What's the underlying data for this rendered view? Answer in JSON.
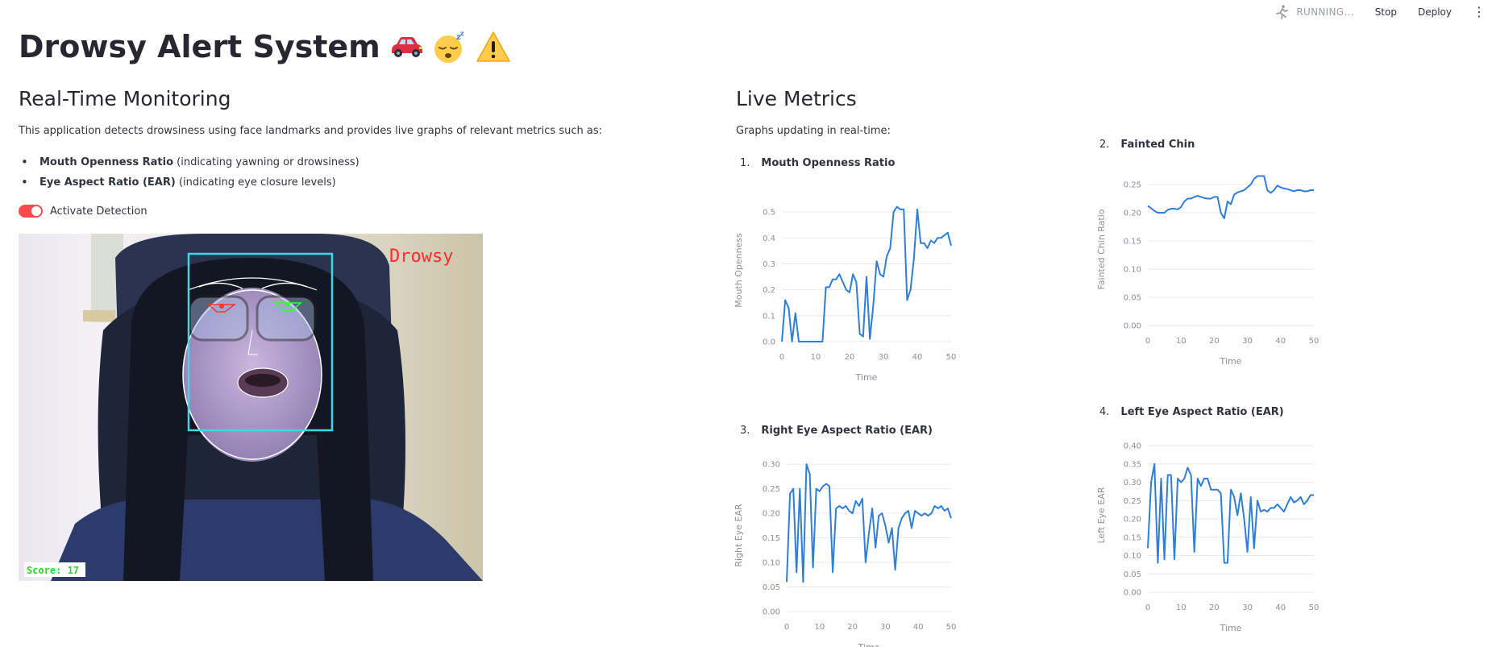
{
  "toolbar": {
    "status": "RUNNING...",
    "stop_label": "Stop",
    "deploy_label": "Deploy",
    "menu_icon": "kebab-menu-icon"
  },
  "page": {
    "title": "Drowsy Alert System",
    "title_emojis": [
      "car-icon",
      "sleepy-face-icon",
      "warning-icon"
    ]
  },
  "left": {
    "heading": "Real-Time Monitoring",
    "description": "This application detects drowsiness using face landmarks and provides live graphs of relevant metrics such as:",
    "bullets": [
      {
        "bold": "Mouth Openness Ratio",
        "rest": " (indicating yawning or drowsiness)"
      },
      {
        "bold": "Eye Aspect Ratio (EAR)",
        "rest": " (indicating eye closure levels)"
      }
    ],
    "toggle_label": "Activate Detection",
    "toggle_on": true,
    "video": {
      "status_text": "Drowsy",
      "score_text": "Score: 17"
    }
  },
  "right": {
    "heading": "Live Metrics",
    "subtitle": "Graphs updating in real-time:"
  },
  "chart_data": [
    {
      "id": "mouth",
      "type": "line",
      "number": "1.",
      "title": "Mouth Openness Ratio",
      "xlabel": "Time",
      "ylabel": "Mouth Openness",
      "xlim": [
        0,
        50
      ],
      "ylim": [
        0,
        0.55
      ],
      "xticks": [
        0,
        10,
        20,
        30,
        40,
        50
      ],
      "yticks": [
        0.0,
        0.1,
        0.2,
        0.3,
        0.4,
        0.5
      ],
      "ytick_labels": [
        "0.0",
        "0.1",
        "0.2",
        "0.3",
        "0.4",
        "0.5"
      ],
      "xtick_labels": [
        "0",
        "10",
        "20",
        "30",
        "40",
        "50"
      ],
      "color": "#2f7ed8",
      "values": [
        0.0,
        0.16,
        0.13,
        0.0,
        0.11,
        0.0,
        0.0,
        0.0,
        0.0,
        0.0,
        0.0,
        0.0,
        0.0,
        0.21,
        0.21,
        0.24,
        0.24,
        0.26,
        0.23,
        0.2,
        0.19,
        0.26,
        0.23,
        0.03,
        0.02,
        0.25,
        0.01,
        0.14,
        0.31,
        0.26,
        0.25,
        0.33,
        0.36,
        0.5,
        0.52,
        0.51,
        0.51,
        0.16,
        0.2,
        0.32,
        0.51,
        0.38,
        0.38,
        0.36,
        0.39,
        0.38,
        0.4,
        0.4,
        0.41,
        0.42,
        0.37
      ]
    },
    {
      "id": "chin",
      "type": "line",
      "number": "2.",
      "title": "Fainted Chin",
      "xlabel": "Time",
      "ylabel": "Fainted Chin Ratio",
      "xlim": [
        0,
        50
      ],
      "ylim": [
        0,
        0.27
      ],
      "xticks": [
        0,
        10,
        20,
        30,
        40,
        50
      ],
      "yticks": [
        0.0,
        0.05,
        0.1,
        0.15,
        0.2,
        0.25
      ],
      "ytick_labels": [
        "0.00",
        "0.05",
        "0.10",
        "0.15",
        "0.20",
        "0.25"
      ],
      "xtick_labels": [
        "0",
        "10",
        "20",
        "30",
        "40",
        "50"
      ],
      "color": "#2f7ed8",
      "values": [
        0.212,
        0.208,
        0.203,
        0.2,
        0.2,
        0.2,
        0.205,
        0.207,
        0.207,
        0.206,
        0.21,
        0.22,
        0.225,
        0.225,
        0.228,
        0.23,
        0.228,
        0.226,
        0.225,
        0.225,
        0.228,
        0.228,
        0.2,
        0.19,
        0.22,
        0.215,
        0.232,
        0.236,
        0.238,
        0.24,
        0.245,
        0.25,
        0.26,
        0.265,
        0.265,
        0.265,
        0.24,
        0.235,
        0.24,
        0.248,
        0.245,
        0.243,
        0.242,
        0.24,
        0.238,
        0.24,
        0.24,
        0.238,
        0.238,
        0.24,
        0.24
      ]
    },
    {
      "id": "reye",
      "type": "line",
      "number": "3.",
      "title": "Right Eye Aspect Ratio (EAR)",
      "xlabel": "Time",
      "ylabel": "Right Eye EAR",
      "xlim": [
        0,
        50
      ],
      "ylim": [
        0,
        0.31
      ],
      "xticks": [
        0,
        10,
        20,
        30,
        40,
        50
      ],
      "yticks": [
        0.0,
        0.05,
        0.1,
        0.15,
        0.2,
        0.25,
        0.3
      ],
      "ytick_labels": [
        "0.00",
        "0.05",
        "0.10",
        "0.15",
        "0.20",
        "0.25",
        "0.30"
      ],
      "xtick_labels": [
        "0",
        "10",
        "20",
        "30",
        "40",
        "50"
      ],
      "color": "#2f7ed8",
      "values": [
        0.06,
        0.24,
        0.25,
        0.08,
        0.25,
        0.06,
        0.3,
        0.28,
        0.09,
        0.25,
        0.245,
        0.255,
        0.26,
        0.255,
        0.08,
        0.21,
        0.215,
        0.21,
        0.215,
        0.205,
        0.2,
        0.225,
        0.215,
        0.23,
        0.1,
        0.16,
        0.21,
        0.13,
        0.195,
        0.2,
        0.175,
        0.14,
        0.17,
        0.085,
        0.17,
        0.19,
        0.2,
        0.205,
        0.17,
        0.205,
        0.2,
        0.195,
        0.2,
        0.195,
        0.2,
        0.215,
        0.21,
        0.215,
        0.205,
        0.21,
        0.19
      ]
    },
    {
      "id": "leye",
      "type": "line",
      "number": "4.",
      "title": "Left Eye Aspect Ratio (EAR)",
      "xlabel": "Time",
      "ylabel": "Left Eye EAR",
      "xlim": [
        0,
        50
      ],
      "ylim": [
        0,
        0.42
      ],
      "xticks": [
        0,
        10,
        20,
        30,
        40,
        50
      ],
      "yticks": [
        0.0,
        0.05,
        0.1,
        0.15,
        0.2,
        0.25,
        0.3,
        0.35,
        0.4
      ],
      "ytick_labels": [
        "0.00",
        "0.05",
        "0.10",
        "0.15",
        "0.20",
        "0.25",
        "0.30",
        "0.35",
        "0.40"
      ],
      "xtick_labels": [
        "0",
        "10",
        "20",
        "30",
        "40",
        "50"
      ],
      "color": "#2f7ed8",
      "values": [
        0.12,
        0.3,
        0.35,
        0.08,
        0.31,
        0.09,
        0.32,
        0.32,
        0.09,
        0.31,
        0.3,
        0.31,
        0.34,
        0.32,
        0.11,
        0.31,
        0.29,
        0.31,
        0.31,
        0.28,
        0.28,
        0.28,
        0.27,
        0.08,
        0.08,
        0.28,
        0.26,
        0.21,
        0.27,
        0.2,
        0.11,
        0.26,
        0.12,
        0.25,
        0.22,
        0.225,
        0.22,
        0.23,
        0.23,
        0.24,
        0.23,
        0.22,
        0.24,
        0.26,
        0.245,
        0.25,
        0.26,
        0.24,
        0.25,
        0.265,
        0.265
      ]
    }
  ]
}
